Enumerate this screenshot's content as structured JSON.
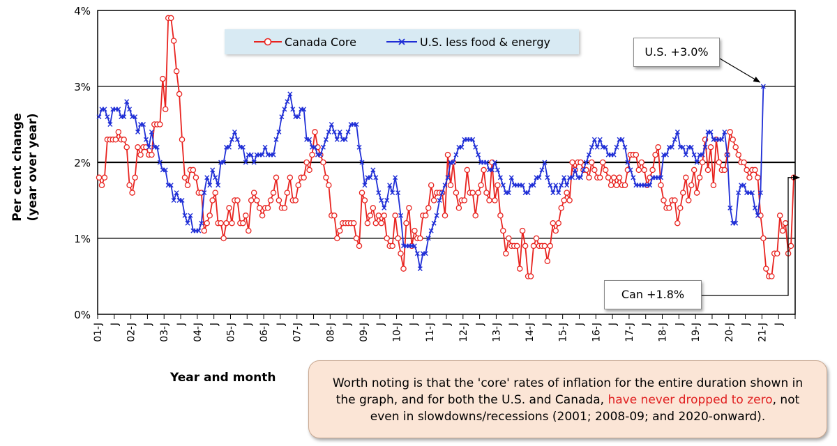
{
  "chart_data": {
    "type": "line",
    "title": "",
    "xlabel": "Year and month",
    "ylabel_lines": [
      "Per cent change",
      "(year over year)"
    ],
    "ylim": [
      0,
      4
    ],
    "y_ticks": [
      "0%",
      "1%",
      "2%",
      "3%",
      "4%"
    ],
    "x_ticks": [
      "01-J",
      "J",
      "02-J",
      "J",
      "03-J",
      "J",
      "04-J",
      "J",
      "05-J",
      "J",
      "06-J",
      "J",
      "07-J",
      "J",
      "08-J",
      "J",
      "09-J",
      "J",
      "10-J",
      "J",
      "11-J",
      "J",
      "12-J",
      "J",
      "13-J",
      "J",
      "14-J",
      "J",
      "15-J",
      "J",
      "16-J",
      "J",
      "17-J",
      "J",
      "18-J",
      "J",
      "19-J",
      "J",
      "20-J",
      "J",
      "21-J",
      "J"
    ],
    "x_start": "2001-01",
    "series": [
      {
        "name": "Canada Core",
        "color": "#e8231f",
        "marker": "circle",
        "values": [
          1.8,
          1.7,
          1.8,
          2.3,
          2.3,
          2.3,
          2.3,
          2.4,
          2.3,
          2.3,
          2.2,
          1.7,
          1.6,
          1.8,
          2.2,
          2.1,
          2.2,
          2.2,
          2.1,
          2.1,
          2.5,
          2.5,
          2.5,
          3.1,
          2.7,
          3.9,
          3.9,
          3.6,
          3.2,
          2.9,
          2.3,
          1.8,
          1.7,
          1.9,
          1.9,
          1.8,
          1.6,
          1.6,
          1.1,
          1.2,
          1.3,
          1.5,
          1.6,
          1.2,
          1.2,
          1.0,
          1.2,
          1.4,
          1.2,
          1.5,
          1.5,
          1.2,
          1.2,
          1.3,
          1.1,
          1.5,
          1.6,
          1.5,
          1.4,
          1.3,
          1.4,
          1.4,
          1.5,
          1.6,
          1.8,
          1.5,
          1.4,
          1.4,
          1.6,
          1.8,
          1.5,
          1.5,
          1.7,
          1.8,
          1.8,
          2.0,
          1.9,
          2.1,
          2.4,
          2.2,
          2.1,
          2.0,
          1.8,
          1.7,
          1.3,
          1.3,
          1.0,
          1.1,
          1.2,
          1.2,
          1.2,
          1.2,
          1.2,
          1.0,
          0.9,
          1.6,
          1.5,
          1.2,
          1.3,
          1.4,
          1.2,
          1.3,
          1.2,
          1.3,
          1.0,
          0.9,
          0.9,
          1.3,
          1.0,
          0.8,
          0.6,
          1.2,
          1.4,
          0.9,
          1.1,
          1.0,
          1.0,
          1.3,
          1.3,
          1.4,
          1.7,
          1.5,
          1.6,
          1.6,
          1.6,
          1.3,
          2.1,
          1.7,
          2.0,
          1.6,
          1.4,
          1.5,
          1.5,
          1.9,
          1.6,
          1.6,
          1.3,
          1.6,
          1.7,
          1.9,
          1.6,
          1.5,
          2.0,
          1.5,
          1.7,
          1.3,
          1.1,
          0.8,
          1.0,
          0.9,
          0.9,
          0.9,
          0.6,
          1.1,
          0.9,
          0.5,
          0.5,
          0.9,
          1.0,
          0.9,
          0.9,
          0.9,
          0.7,
          0.9,
          1.2,
          1.1,
          1.2,
          1.4,
          1.5,
          1.6,
          1.5,
          2.0,
          1.9,
          2.0,
          2.0,
          1.9,
          1.9,
          1.8,
          2.0,
          1.9,
          1.8,
          1.8,
          2.0,
          1.9,
          1.8,
          1.7,
          1.8,
          1.7,
          1.8,
          1.7,
          1.7,
          1.9,
          2.1,
          2.1,
          2.1,
          1.9,
          2.0,
          1.9,
          1.7,
          1.8,
          1.9,
          2.1,
          2.2,
          1.7,
          1.5,
          1.4,
          1.4,
          1.5,
          1.5,
          1.2,
          1.4,
          1.6,
          1.8,
          1.5,
          1.7,
          1.9,
          1.6,
          1.8,
          2.0,
          2.3,
          1.9,
          2.2,
          1.7,
          2.3,
          2.0,
          1.9,
          1.9,
          2.1,
          2.4,
          2.3,
          2.2,
          2.1,
          2.0,
          2.0,
          1.9,
          1.8,
          1.9,
          1.9,
          1.8,
          1.3,
          1.0,
          0.6,
          0.5,
          0.5,
          0.8,
          0.8,
          1.3,
          1.1,
          1.2,
          0.8,
          0.9,
          1.8
        ]
      },
      {
        "name": "U.S. less food & energy",
        "color": "#1f2ed6",
        "marker": "x",
        "values": [
          2.6,
          2.7,
          2.7,
          2.6,
          2.5,
          2.7,
          2.7,
          2.7,
          2.6,
          2.6,
          2.8,
          2.7,
          2.6,
          2.6,
          2.4,
          2.5,
          2.5,
          2.3,
          2.2,
          2.4,
          2.2,
          2.2,
          2.0,
          1.9,
          1.9,
          1.7,
          1.7,
          1.5,
          1.6,
          1.5,
          1.5,
          1.3,
          1.2,
          1.3,
          1.1,
          1.1,
          1.1,
          1.2,
          1.6,
          1.8,
          1.7,
          1.9,
          1.8,
          1.7,
          2.0,
          2.0,
          2.2,
          2.2,
          2.3,
          2.4,
          2.3,
          2.2,
          2.2,
          2.0,
          2.1,
          2.1,
          2.0,
          2.1,
          2.1,
          2.1,
          2.2,
          2.1,
          2.1,
          2.1,
          2.3,
          2.4,
          2.6,
          2.7,
          2.8,
          2.9,
          2.7,
          2.6,
          2.6,
          2.7,
          2.7,
          2.3,
          2.3,
          2.2,
          2.2,
          2.1,
          2.1,
          2.2,
          2.3,
          2.4,
          2.5,
          2.4,
          2.3,
          2.4,
          2.3,
          2.3,
          2.4,
          2.5,
          2.5,
          2.5,
          2.2,
          2.0,
          1.7,
          1.8,
          1.8,
          1.9,
          1.8,
          1.6,
          1.5,
          1.4,
          1.5,
          1.7,
          1.6,
          1.8,
          1.6,
          1.3,
          0.9,
          0.9,
          0.9,
          0.9,
          0.9,
          0.8,
          0.6,
          0.8,
          0.8,
          1.0,
          1.1,
          1.2,
          1.3,
          1.5,
          1.6,
          1.7,
          1.8,
          2.0,
          2.0,
          2.1,
          2.2,
          2.2,
          2.3,
          2.3,
          2.3,
          2.3,
          2.2,
          2.1,
          2.0,
          2.0,
          2.0,
          1.9,
          1.9,
          2.0,
          1.9,
          1.8,
          1.7,
          1.6,
          1.6,
          1.8,
          1.7,
          1.7,
          1.7,
          1.7,
          1.6,
          1.6,
          1.7,
          1.7,
          1.8,
          1.8,
          1.9,
          2.0,
          1.8,
          1.7,
          1.6,
          1.7,
          1.6,
          1.7,
          1.8,
          1.7,
          1.8,
          1.8,
          1.9,
          1.8,
          1.8,
          1.9,
          2.0,
          2.1,
          2.2,
          2.3,
          2.2,
          2.3,
          2.2,
          2.2,
          2.1,
          2.1,
          2.1,
          2.2,
          2.3,
          2.3,
          2.2,
          2.0,
          1.9,
          1.8,
          1.7,
          1.7,
          1.7,
          1.7,
          1.7,
          1.7,
          1.8,
          1.8,
          1.8,
          1.8,
          2.1,
          2.1,
          2.2,
          2.2,
          2.3,
          2.4,
          2.2,
          2.2,
          2.1,
          2.2,
          2.2,
          2.1,
          2.0,
          2.1,
          2.1,
          2.2,
          2.4,
          2.4,
          2.3,
          2.3,
          2.3,
          2.3,
          2.4,
          2.1,
          1.4,
          1.2,
          1.2,
          1.6,
          1.7,
          1.7,
          1.6,
          1.6,
          1.6,
          1.4,
          1.3,
          1.6,
          3.0
        ]
      }
    ],
    "legend": {
      "position": "top-center",
      "entries": [
        "Canada Core",
        "U.S. less food & energy"
      ]
    },
    "annotations": {
      "us": "U.S. +3.0%",
      "can": "Can +1.8%"
    },
    "grid": "horizontal"
  },
  "note": {
    "part1": "Worth noting is that the 'core' rates of inflation for the entire duration shown in the graph, and for both the U.S. and Canada,",
    "highlight": "have never dropped to zero",
    "part2": ", not even in slowdowns/recessions (2001; 2008-09; and 2020-onward)."
  }
}
